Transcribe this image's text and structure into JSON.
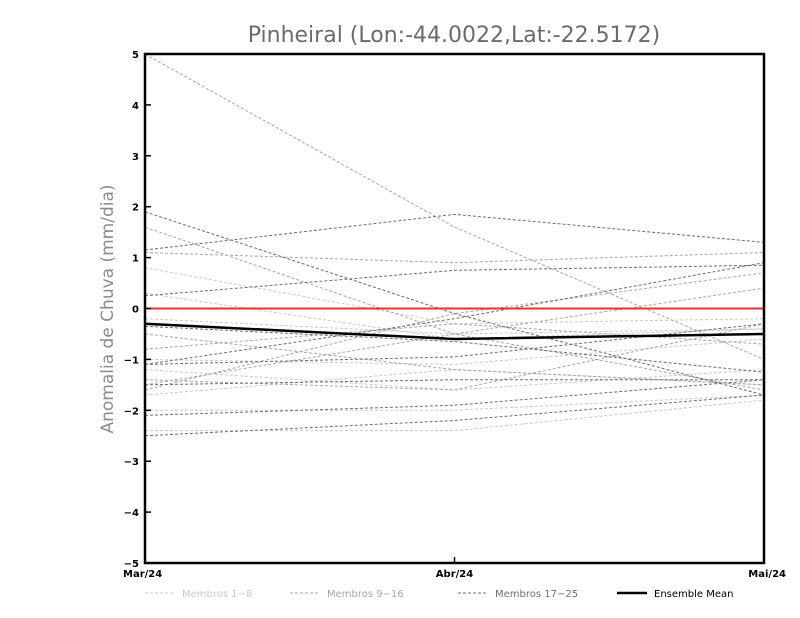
{
  "chart_data": {
    "type": "line",
    "title": "Pinheiral (Lon:-44.0022,Lat:-22.5172)",
    "xlabel": "",
    "ylabel": "Anomalia de Chuva (mm/dia)",
    "categories": [
      "Mar/24",
      "Abr/24",
      "Mai/24"
    ],
    "ylim": [
      -5,
      5
    ],
    "yticks": [
      "5",
      "4",
      "3",
      "2",
      "1",
      "0",
      "-1",
      "-2",
      "-3",
      "-4",
      "-5"
    ],
    "grid": false,
    "zero_line_color": "#e83030",
    "legend": {
      "placement": "bottom",
      "entries": [
        {
          "name": "Membros 1-8",
          "color": "#c8c8c8"
        },
        {
          "name": "Membros 9-16",
          "color": "#a6a6a6"
        },
        {
          "name": "Membros 17-25",
          "color": "#6e6e6e"
        },
        {
          "name": "Ensemble Mean",
          "color": "#000000"
        }
      ]
    },
    "series": [
      {
        "group": 0,
        "values": [
          0.8,
          -0.3,
          -0.2
        ]
      },
      {
        "group": 0,
        "values": [
          -0.2,
          -0.5,
          -0.4
        ]
      },
      {
        "group": 0,
        "values": [
          -1.2,
          -1.6,
          -1.2
        ]
      },
      {
        "group": 0,
        "values": [
          -1.7,
          -1.2,
          -1.5
        ]
      },
      {
        "group": 0,
        "values": [
          -2.4,
          -2.4,
          -1.8
        ]
      },
      {
        "group": 0,
        "values": [
          -1.0,
          -1.1,
          -0.6
        ]
      },
      {
        "group": 0,
        "values": [
          0.3,
          -0.6,
          -0.4
        ]
      },
      {
        "group": 0,
        "values": [
          -2.0,
          -2.0,
          -1.7
        ]
      },
      {
        "group": 1,
        "values": [
          5.0,
          1.6,
          -1.0
        ]
      },
      {
        "group": 1,
        "values": [
          1.6,
          -0.5,
          -1.6
        ]
      },
      {
        "group": 1,
        "values": [
          1.1,
          0.9,
          1.1
        ]
      },
      {
        "group": 1,
        "values": [
          -0.5,
          -1.2,
          -1.5
        ]
      },
      {
        "group": 1,
        "values": [
          -1.5,
          -0.5,
          0.4
        ]
      },
      {
        "group": 1,
        "values": [
          -1.4,
          -1.6,
          -0.3
        ]
      },
      {
        "group": 1,
        "values": [
          -0.8,
          -0.3,
          -0.7
        ]
      },
      {
        "group": 1,
        "values": [
          -1.6,
          -0.1,
          0.7
        ]
      },
      {
        "group": 2,
        "values": [
          1.9,
          -0.1,
          -1.7
        ]
      },
      {
        "group": 2,
        "values": [
          1.15,
          1.85,
          1.3
        ]
      },
      {
        "group": 2,
        "values": [
          0.25,
          0.75,
          0.85
        ]
      },
      {
        "group": 2,
        "values": [
          -1.1,
          -0.2,
          0.9
        ]
      },
      {
        "group": 2,
        "values": [
          -1.5,
          -1.4,
          -1.4
        ]
      },
      {
        "group": 2,
        "values": [
          -2.1,
          -1.9,
          -1.4
        ]
      },
      {
        "group": 2,
        "values": [
          -2.5,
          -2.2,
          -1.7
        ]
      },
      {
        "group": 2,
        "values": [
          -0.35,
          -0.65,
          -1.25
        ]
      },
      {
        "group": 2,
        "values": [
          -1.1,
          -0.95,
          -0.3
        ]
      }
    ],
    "ensemble_mean": {
      "name": "Ensemble Mean",
      "values": [
        -0.3,
        -0.6,
        -0.5
      ]
    }
  }
}
